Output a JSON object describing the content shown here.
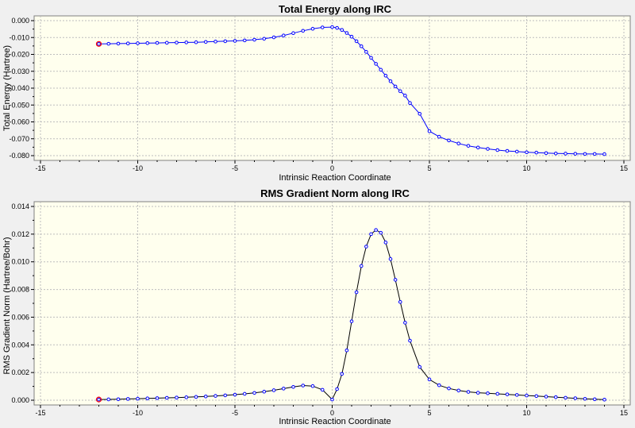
{
  "chart_data": [
    {
      "type": "line",
      "title": "Total Energy along IRC",
      "xlabel": "Intrinsic Reaction Coordinate",
      "ylabel": "Total Energy (Hartree)",
      "xlim": [
        -15,
        15
      ],
      "ylim": [
        -0.08,
        0.0
      ],
      "x_ticks": [
        "-15",
        "-10",
        "-5",
        "0",
        "5",
        "10",
        "15"
      ],
      "y_ticks": [
        "0.000",
        "-0.010",
        "-0.020",
        "-0.030",
        "-0.040",
        "-0.050",
        "-0.060",
        "-0.070",
        "-0.080"
      ],
      "grid": true,
      "background": "#ffffee",
      "line_color": "#0000ff",
      "marker_color": "#0000ff",
      "start_marker_color": "#ff0000",
      "x": [
        -12.0,
        -11.5,
        -11.0,
        -10.5,
        -10.0,
        -9.5,
        -9.0,
        -8.5,
        -8.0,
        -7.5,
        -7.0,
        -6.5,
        -6.0,
        -5.5,
        -5.0,
        -4.5,
        -4.0,
        -3.5,
        -3.0,
        -2.5,
        -2.0,
        -1.5,
        -1.0,
        -0.5,
        0.0,
        0.25,
        0.5,
        0.75,
        1.0,
        1.25,
        1.5,
        1.75,
        2.0,
        2.25,
        2.5,
        2.75,
        3.0,
        3.25,
        3.5,
        3.75,
        4.0,
        4.5,
        5.0,
        5.5,
        6.0,
        6.5,
        7.0,
        7.5,
        8.0,
        8.5,
        9.0,
        9.5,
        10.0,
        10.5,
        11.0,
        11.5,
        12.0,
        12.5,
        13.0,
        13.5,
        14.0
      ],
      "y": [
        -0.0138,
        -0.0137,
        -0.0136,
        -0.0135,
        -0.0134,
        -0.0133,
        -0.0132,
        -0.0131,
        -0.013,
        -0.0129,
        -0.0128,
        -0.0126,
        -0.0124,
        -0.0122,
        -0.012,
        -0.0117,
        -0.0113,
        -0.0107,
        -0.0099,
        -0.0088,
        -0.0074,
        -0.006,
        -0.0048,
        -0.004,
        -0.0038,
        -0.0043,
        -0.0055,
        -0.0073,
        -0.0095,
        -0.0122,
        -0.0152,
        -0.0185,
        -0.022,
        -0.0256,
        -0.0291,
        -0.0326,
        -0.0359,
        -0.039,
        -0.0418,
        -0.0444,
        -0.0488,
        -0.0552,
        -0.0655,
        -0.0688,
        -0.071,
        -0.0728,
        -0.0742,
        -0.0752,
        -0.076,
        -0.0767,
        -0.0772,
        -0.0776,
        -0.078,
        -0.0782,
        -0.0785,
        -0.0787,
        -0.0788,
        -0.0789,
        -0.079,
        -0.079,
        -0.0791
      ]
    },
    {
      "type": "line",
      "title": "RMS Gradient Norm along IRC",
      "xlabel": "Intrinsic Reaction Coordinate",
      "ylabel": "RMS Gradient Norm (Hartree/Bohr)",
      "xlim": [
        -15,
        15
      ],
      "ylim": [
        0.0,
        0.014
      ],
      "x_ticks": [
        "-15",
        "-10",
        "-5",
        "0",
        "5",
        "10",
        "15"
      ],
      "y_ticks": [
        "0.014",
        "0.012",
        "0.010",
        "0.008",
        "0.006",
        "0.004",
        "0.002",
        "0.000"
      ],
      "grid": true,
      "background": "#ffffee",
      "line_color": "#000000",
      "marker_color": "#0000ff",
      "start_marker_color": "#ff0000",
      "x": [
        -12.0,
        -11.5,
        -11.0,
        -10.5,
        -10.0,
        -9.5,
        -9.0,
        -8.5,
        -8.0,
        -7.5,
        -7.0,
        -6.5,
        -6.0,
        -5.5,
        -5.0,
        -4.5,
        -4.0,
        -3.5,
        -3.0,
        -2.5,
        -2.0,
        -1.5,
        -1.0,
        -0.5,
        0.0,
        0.25,
        0.5,
        0.75,
        1.0,
        1.25,
        1.5,
        1.75,
        2.0,
        2.25,
        2.5,
        2.75,
        3.0,
        3.25,
        3.5,
        3.75,
        4.0,
        4.5,
        5.0,
        5.5,
        6.0,
        6.5,
        7.0,
        7.5,
        8.0,
        8.5,
        9.0,
        9.5,
        10.0,
        10.5,
        11.0,
        11.5,
        12.0,
        12.5,
        13.0,
        13.5,
        14.0
      ],
      "y": [
        5e-05,
        6e-05,
        7e-05,
        9e-05,
        0.00011,
        0.00013,
        0.00015,
        0.00017,
        0.00019,
        0.00021,
        0.00024,
        0.00027,
        0.00031,
        0.00035,
        0.0004,
        0.00046,
        0.00053,
        0.00062,
        0.00072,
        0.00084,
        0.00096,
        0.00106,
        0.00102,
        0.00075,
        5e-05,
        0.0008,
        0.0019,
        0.0036,
        0.0057,
        0.0078,
        0.0097,
        0.0111,
        0.012,
        0.0123,
        0.0121,
        0.0114,
        0.0102,
        0.0087,
        0.0071,
        0.0056,
        0.0043,
        0.0024,
        0.0015,
        0.00108,
        0.00085,
        0.0007,
        0.0006,
        0.00054,
        0.0005,
        0.00046,
        0.00042,
        0.00038,
        0.00034,
        0.0003,
        0.00026,
        0.00022,
        0.00018,
        0.00014,
        0.0001,
        7e-05,
        4e-05
      ]
    }
  ]
}
